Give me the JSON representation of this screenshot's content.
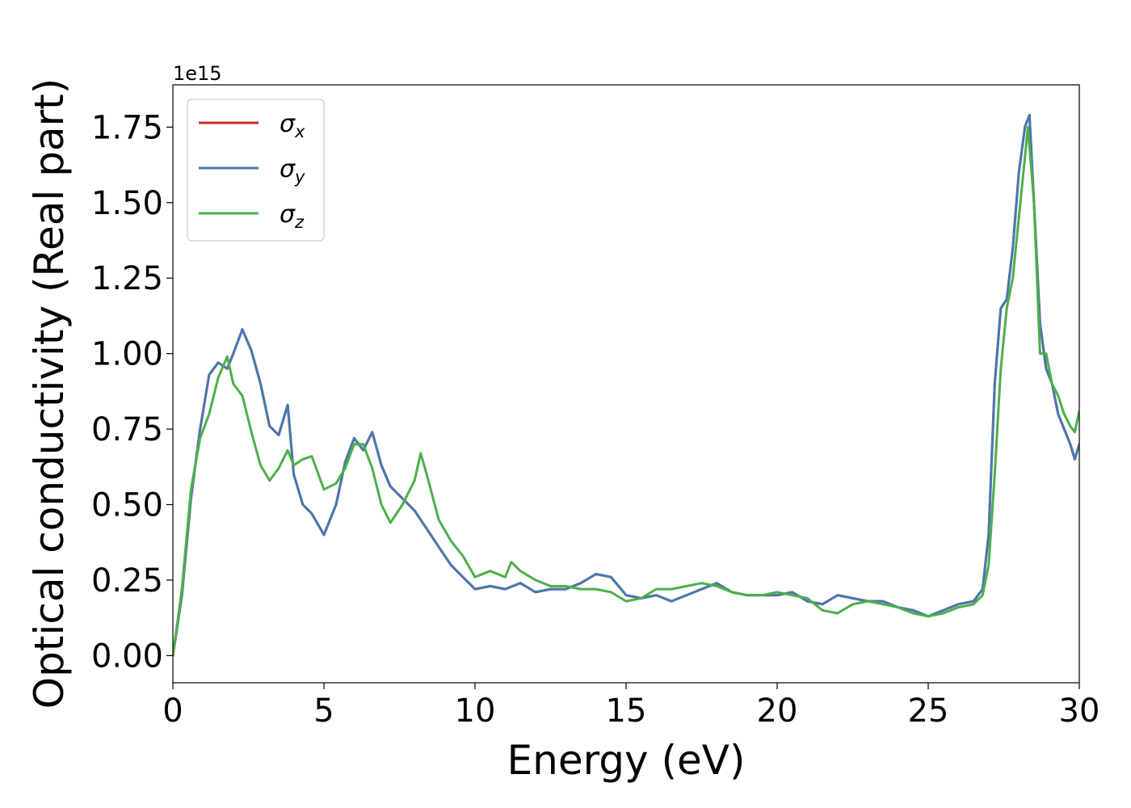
{
  "chart_data": {
    "type": "line",
    "xlabel": "Energy (eV)",
    "ylabel": "Optical conductivity (Real part)",
    "y_offset_label": "1e15",
    "xlim": [
      0,
      30
    ],
    "ylim": [
      -0.09,
      1.89
    ],
    "x_ticks": [
      0,
      5,
      10,
      15,
      20,
      25,
      30
    ],
    "x_tick_labels": [
      "0",
      "5",
      "10",
      "15",
      "20",
      "25",
      "30"
    ],
    "y_ticks": [
      0.0,
      0.25,
      0.5,
      0.75,
      1.0,
      1.25,
      1.5,
      1.75
    ],
    "y_tick_labels": [
      "0.00",
      "0.25",
      "0.50",
      "0.75",
      "1.00",
      "1.25",
      "1.50",
      "1.75"
    ],
    "grid": false,
    "legend_position": "top-left",
    "series": [
      {
        "name": "σ",
        "subscript": "x",
        "color": "#d62728",
        "x": [
          0,
          0.3,
          0.6,
          0.9,
          1.2,
          1.5,
          1.8,
          2.0,
          2.3,
          2.6,
          2.9,
          3.2,
          3.5,
          3.8,
          4.0,
          4.3,
          4.6,
          5.0,
          5.4,
          5.7,
          6.0,
          6.3,
          6.6,
          6.9,
          7.2,
          7.6,
          8.0,
          8.4,
          8.8,
          9.2,
          9.6,
          10.0,
          10.5,
          11.0,
          11.5,
          12.0,
          12.5,
          13.0,
          13.5,
          14.0,
          14.5,
          15.0,
          15.5,
          16.0,
          16.5,
          17.0,
          17.5,
          18.0,
          18.5,
          19.0,
          19.5,
          20.0,
          20.5,
          21.0,
          21.5,
          22.0,
          22.5,
          23.0,
          23.5,
          24.0,
          24.5,
          25.0,
          25.5,
          26.0,
          26.5,
          26.8,
          27.0,
          27.2,
          27.4,
          27.6,
          27.8,
          28.0,
          28.2,
          28.35,
          28.5,
          28.7,
          28.9,
          29.1,
          29.3,
          29.5,
          29.7,
          29.85,
          30.0
        ],
        "y": [
          0.0,
          0.2,
          0.52,
          0.75,
          0.93,
          0.97,
          0.95,
          1.0,
          1.08,
          1.01,
          0.9,
          0.76,
          0.73,
          0.83,
          0.6,
          0.5,
          0.47,
          0.4,
          0.5,
          0.64,
          0.72,
          0.68,
          0.74,
          0.63,
          0.56,
          0.52,
          0.48,
          0.42,
          0.36,
          0.3,
          0.26,
          0.22,
          0.23,
          0.22,
          0.24,
          0.21,
          0.22,
          0.22,
          0.24,
          0.27,
          0.26,
          0.2,
          0.19,
          0.2,
          0.18,
          0.2,
          0.22,
          0.24,
          0.21,
          0.2,
          0.2,
          0.2,
          0.21,
          0.18,
          0.17,
          0.2,
          0.19,
          0.18,
          0.18,
          0.16,
          0.15,
          0.13,
          0.15,
          0.17,
          0.18,
          0.22,
          0.4,
          0.9,
          1.15,
          1.18,
          1.35,
          1.6,
          1.75,
          1.79,
          1.5,
          1.1,
          0.95,
          0.9,
          0.8,
          0.75,
          0.7,
          0.65,
          0.7
        ]
      },
      {
        "name": "σ",
        "subscript": "y",
        "color": "#4878b0",
        "x": [
          0,
          0.3,
          0.6,
          0.9,
          1.2,
          1.5,
          1.8,
          2.0,
          2.3,
          2.6,
          2.9,
          3.2,
          3.5,
          3.8,
          4.0,
          4.3,
          4.6,
          5.0,
          5.4,
          5.7,
          6.0,
          6.3,
          6.6,
          6.9,
          7.2,
          7.6,
          8.0,
          8.4,
          8.8,
          9.2,
          9.6,
          10.0,
          10.5,
          11.0,
          11.5,
          12.0,
          12.5,
          13.0,
          13.5,
          14.0,
          14.5,
          15.0,
          15.5,
          16.0,
          16.5,
          17.0,
          17.5,
          18.0,
          18.5,
          19.0,
          19.5,
          20.0,
          20.5,
          21.0,
          21.5,
          22.0,
          22.5,
          23.0,
          23.5,
          24.0,
          24.5,
          25.0,
          25.5,
          26.0,
          26.5,
          26.8,
          27.0,
          27.2,
          27.4,
          27.6,
          27.8,
          28.0,
          28.2,
          28.35,
          28.5,
          28.7,
          28.9,
          29.1,
          29.3,
          29.5,
          29.7,
          29.85,
          30.0
        ],
        "y": [
          0.0,
          0.2,
          0.52,
          0.75,
          0.93,
          0.97,
          0.95,
          1.0,
          1.08,
          1.01,
          0.9,
          0.76,
          0.73,
          0.83,
          0.6,
          0.5,
          0.47,
          0.4,
          0.5,
          0.64,
          0.72,
          0.68,
          0.74,
          0.63,
          0.56,
          0.52,
          0.48,
          0.42,
          0.36,
          0.3,
          0.26,
          0.22,
          0.23,
          0.22,
          0.24,
          0.21,
          0.22,
          0.22,
          0.24,
          0.27,
          0.26,
          0.2,
          0.19,
          0.2,
          0.18,
          0.2,
          0.22,
          0.24,
          0.21,
          0.2,
          0.2,
          0.2,
          0.21,
          0.18,
          0.17,
          0.2,
          0.19,
          0.18,
          0.18,
          0.16,
          0.15,
          0.13,
          0.15,
          0.17,
          0.18,
          0.22,
          0.4,
          0.9,
          1.15,
          1.18,
          1.35,
          1.6,
          1.75,
          1.79,
          1.5,
          1.1,
          0.95,
          0.9,
          0.8,
          0.75,
          0.7,
          0.65,
          0.7
        ]
      },
      {
        "name": "σ",
        "subscript": "z",
        "color": "#4daf4a",
        "x": [
          0,
          0.3,
          0.6,
          0.9,
          1.2,
          1.5,
          1.8,
          2.0,
          2.3,
          2.6,
          2.9,
          3.2,
          3.5,
          3.8,
          4.0,
          4.3,
          4.6,
          5.0,
          5.4,
          5.7,
          6.0,
          6.3,
          6.6,
          6.9,
          7.2,
          7.6,
          8.0,
          8.2,
          8.4,
          8.8,
          9.2,
          9.6,
          10.0,
          10.5,
          11.0,
          11.2,
          11.5,
          12.0,
          12.5,
          13.0,
          13.5,
          14.0,
          14.5,
          15.0,
          15.5,
          16.0,
          16.5,
          17.0,
          17.5,
          18.0,
          18.5,
          19.0,
          19.5,
          20.0,
          20.5,
          21.0,
          21.5,
          22.0,
          22.5,
          23.0,
          23.5,
          24.0,
          24.5,
          25.0,
          25.5,
          26.0,
          26.5,
          26.8,
          27.0,
          27.2,
          27.4,
          27.6,
          27.8,
          28.0,
          28.2,
          28.3,
          28.5,
          28.7,
          28.9,
          29.1,
          29.3,
          29.5,
          29.7,
          29.85,
          30.0
        ],
        "y": [
          0.0,
          0.22,
          0.55,
          0.72,
          0.8,
          0.92,
          0.99,
          0.9,
          0.86,
          0.74,
          0.63,
          0.58,
          0.62,
          0.68,
          0.63,
          0.65,
          0.66,
          0.55,
          0.57,
          0.62,
          0.7,
          0.7,
          0.62,
          0.5,
          0.44,
          0.5,
          0.58,
          0.67,
          0.6,
          0.45,
          0.38,
          0.33,
          0.26,
          0.28,
          0.26,
          0.31,
          0.28,
          0.25,
          0.23,
          0.23,
          0.22,
          0.22,
          0.21,
          0.18,
          0.19,
          0.22,
          0.22,
          0.23,
          0.24,
          0.23,
          0.21,
          0.2,
          0.2,
          0.21,
          0.2,
          0.19,
          0.15,
          0.14,
          0.17,
          0.18,
          0.17,
          0.16,
          0.14,
          0.13,
          0.14,
          0.16,
          0.17,
          0.2,
          0.3,
          0.6,
          0.95,
          1.15,
          1.25,
          1.45,
          1.65,
          1.75,
          1.5,
          1.0,
          1.0,
          0.9,
          0.86,
          0.8,
          0.76,
          0.74,
          0.81
        ]
      }
    ]
  }
}
